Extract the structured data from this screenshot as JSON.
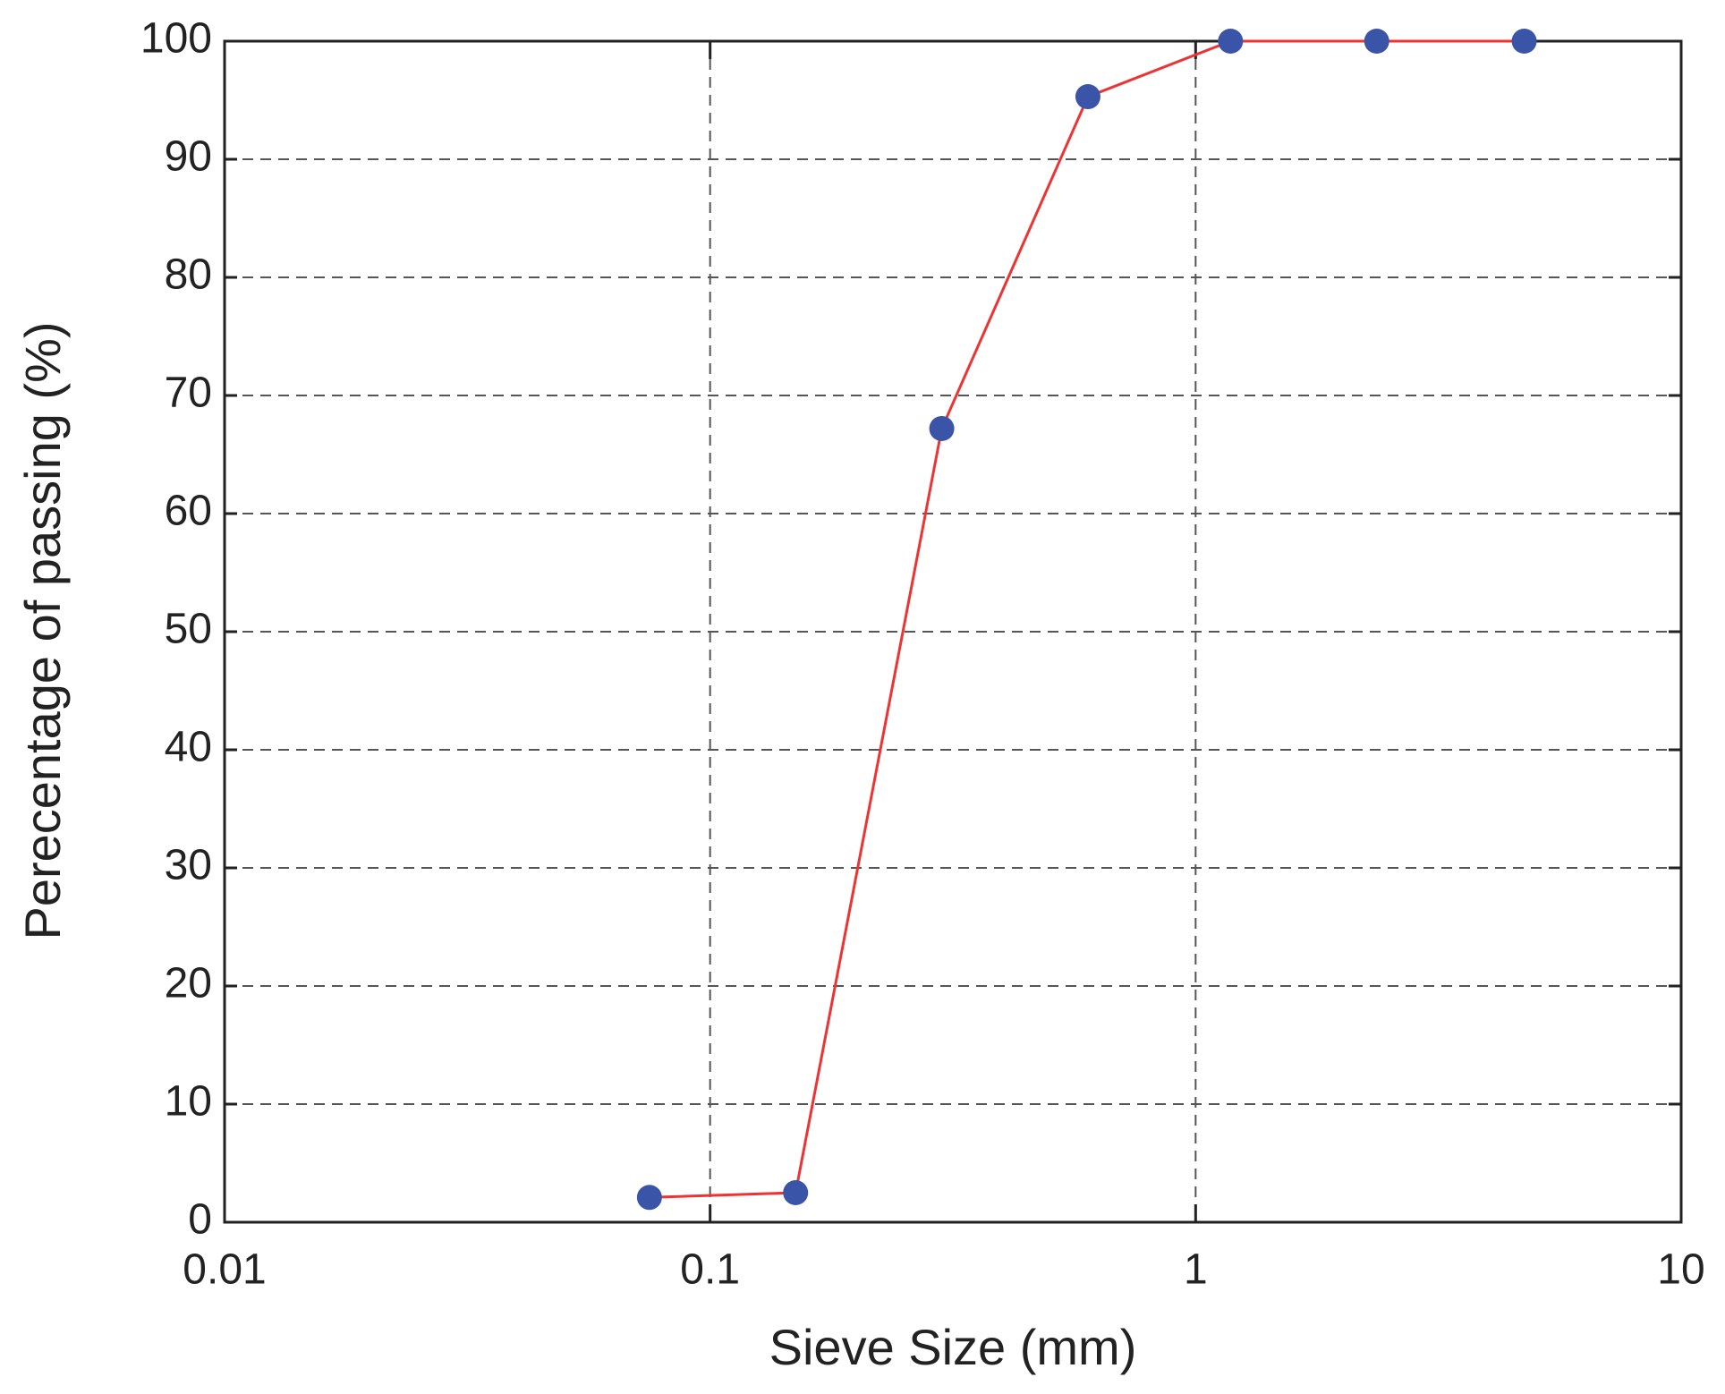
{
  "chart_data": {
    "type": "line",
    "xlabel": "Sieve Size (mm)",
    "ylabel": "Perecentage of passing  (%)",
    "x": [
      0.075,
      0.15,
      0.3,
      0.6,
      1.18,
      2.36,
      4.75
    ],
    "values": [
      2.1,
      2.5,
      67.2,
      95.3,
      100,
      100,
      100
    ],
    "color": "#ee3333",
    "marker_color": "#3a55a8",
    "xlog": true,
    "xlim": [
      0.01,
      10
    ],
    "xticks": [
      0.01,
      0.1,
      1,
      10
    ],
    "ylim": [
      0,
      100
    ],
    "yticks": [
      0,
      10,
      20,
      30,
      40,
      50,
      60,
      70,
      80,
      90,
      100
    ],
    "grid": true
  }
}
